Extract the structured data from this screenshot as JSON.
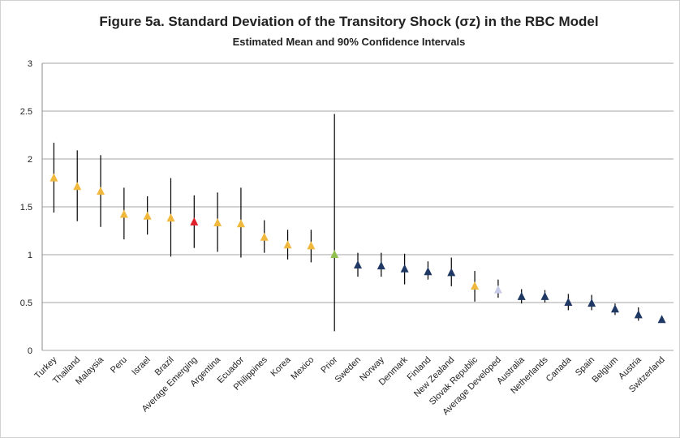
{
  "chart_data": {
    "type": "errorbar",
    "title": "Figure 5a. Standard Deviation of the Transitory Shock (σz) in the RBC Model",
    "subtitle": "Estimated Mean and 90% Confidence Intervals",
    "categories": [
      "Turkey",
      "Thailand",
      "Malaysia",
      "Peru",
      "Israel",
      "Brazil",
      "Average Emerging",
      "Argentina",
      "Ecuador",
      "Philippines",
      "Korea",
      "Mexico",
      "Prior",
      "Sweden",
      "Norway",
      "Denmark",
      "Finland",
      "New Zealand",
      "Slovak Republic",
      "Average Developed",
      "Australia",
      "Netherlands",
      "Canada",
      "Spain",
      "Belgium",
      "Austria",
      "Switzerland"
    ],
    "values": [
      1.8,
      1.71,
      1.66,
      1.42,
      1.4,
      1.38,
      1.34,
      1.33,
      1.32,
      1.18,
      1.1,
      1.09,
      1.0,
      0.89,
      0.88,
      0.85,
      0.82,
      0.81,
      0.67,
      0.63,
      0.56,
      0.56,
      0.5,
      0.49,
      0.43,
      0.37,
      0.32
    ],
    "lower": [
      1.44,
      1.35,
      1.29,
      1.16,
      1.21,
      0.98,
      1.07,
      1.03,
      0.97,
      1.02,
      0.95,
      0.92,
      0.2,
      0.77,
      0.77,
      0.69,
      0.74,
      0.67,
      0.51,
      0.55,
      0.49,
      0.5,
      0.42,
      0.42,
      0.37,
      0.31,
      0.29
    ],
    "upper": [
      2.17,
      2.09,
      2.04,
      1.7,
      1.61,
      1.8,
      1.62,
      1.65,
      1.7,
      1.36,
      1.26,
      1.26,
      2.47,
      1.02,
      1.02,
      1.01,
      0.93,
      0.97,
      0.83,
      0.74,
      0.64,
      0.63,
      0.59,
      0.58,
      0.49,
      0.45,
      0.35
    ],
    "colors": [
      "#f0b83c",
      "#f0b83c",
      "#f0b83c",
      "#f0b83c",
      "#f0b83c",
      "#f0b83c",
      "#e0202a",
      "#f0b83c",
      "#f0b83c",
      "#f0b83c",
      "#f0b83c",
      "#f0b83c",
      "#92c050",
      "#1f3864",
      "#1f3864",
      "#1f3864",
      "#1f3864",
      "#1f3864",
      "#f0b83c",
      "#c8cce8",
      "#1f3864",
      "#1f3864",
      "#1f3864",
      "#1f3864",
      "#1f3864",
      "#1f3864",
      "#1f3864"
    ],
    "ylim": [
      0,
      3
    ],
    "yticks": [
      0,
      0.5,
      1,
      1.5,
      2,
      2.5,
      3
    ],
    "grid": true
  }
}
